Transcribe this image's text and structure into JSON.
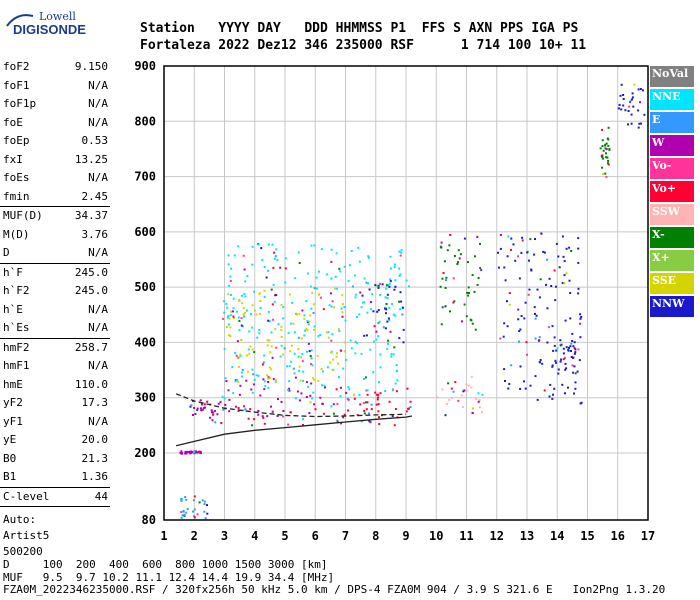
{
  "logo": {
    "line1": "Lowell",
    "line2": "DIGISONDE"
  },
  "header": {
    "line1": "Station   YYYY DAY   DDD HHMMSS P1  FFS S AXN PPS IGA PS",
    "line2": "Fortaleza 2022 Dez12 346 235000 RSF      1 714 100 10+ 11"
  },
  "params": {
    "g1": [
      [
        "foF2",
        "9.150"
      ],
      [
        "foF1",
        "N/A"
      ],
      [
        "foF1p",
        "N/A"
      ],
      [
        "foE",
        "N/A"
      ],
      [
        "foEp",
        "0.53"
      ],
      [
        "fxI",
        "13.25"
      ],
      [
        "foEs",
        "N/A"
      ],
      [
        "fmin",
        "2.45"
      ]
    ],
    "g2": [
      [
        "MUF(D)",
        "34.37"
      ],
      [
        "M(D)",
        "3.76"
      ],
      [
        "D",
        "N/A"
      ]
    ],
    "g3": [
      [
        "h`F",
        "245.0"
      ],
      [
        "h`F2",
        "245.0"
      ],
      [
        "h`E",
        "N/A"
      ],
      [
        "h`Es",
        "N/A"
      ]
    ],
    "g4": [
      [
        "hmF2",
        "258.7"
      ],
      [
        "hmF1",
        "N/A"
      ],
      [
        "hmE",
        "110.0"
      ],
      [
        "yF2",
        "17.3"
      ],
      [
        "yF1",
        "N/A"
      ],
      [
        "yE",
        "20.0"
      ],
      [
        "B0",
        "21.3"
      ],
      [
        "B1",
        "1.36"
      ]
    ],
    "g5": [
      [
        "C-level",
        "44"
      ]
    ]
  },
  "autoscale": {
    "label": "Auto:",
    "name": "Artist5",
    "num": "500200"
  },
  "legend": [
    {
      "name": "NoVal",
      "color": "#808080",
      "text": "#ffffff"
    },
    {
      "name": "NNE",
      "color": "#00e5ff",
      "text": "#ffffff"
    },
    {
      "name": "E",
      "color": "#3399ff",
      "text": "#ffffff"
    },
    {
      "name": "W",
      "color": "#b000b0",
      "text": "#ffffff"
    },
    {
      "name": "Vo-",
      "color": "#ff3399",
      "text": "#ffffff"
    },
    {
      "name": "Vo+",
      "color": "#ff0033",
      "text": "#ffffff"
    },
    {
      "name": "SSW",
      "color": "#ffb3b3",
      "text": "#ffffff"
    },
    {
      "name": "X-",
      "color": "#008000",
      "text": "#ffffff"
    },
    {
      "name": "X+",
      "color": "#88cc44",
      "text": "#ffffff"
    },
    {
      "name": "SSE",
      "color": "#d4d400",
      "text": "#ffffff"
    },
    {
      "name": "NNW",
      "color": "#1a1acc",
      "text": "#ffffff"
    }
  ],
  "footer": {
    "line1": "D     100  200  400  600  800 1000 1500 3000 [km]",
    "line2": "MUF   9.5  9.7 10.2 11.1 12.4 14.4 19.9 34.4 [MHz]",
    "line3": "FZA0M_2022346235000.RSF / 320fx256h 50 kHz 5.0 km / DPS-4 FZA0M 904 / 3.9 S 321.6 E   Ion2Png 1.3.20"
  },
  "chart_data": {
    "type": "scatter",
    "xticks": [
      "1",
      "2",
      "3",
      "4",
      "5",
      "6",
      "7",
      "8",
      "9",
      "10",
      "11",
      "12",
      "13",
      "14",
      "15",
      "16",
      "17"
    ],
    "yticks": [
      "80",
      "200",
      "300",
      "400",
      "500",
      "600",
      "700",
      "800",
      "900"
    ],
    "xlim": [
      1,
      17
    ],
    "ylim": [
      80,
      900
    ],
    "grid": true,
    "legend_position": "right",
    "traces": [
      {
        "name": "o-trace",
        "points": [
          [
            1.4,
            213
          ],
          [
            2,
            221
          ],
          [
            3,
            234
          ],
          [
            4,
            241
          ],
          [
            5,
            246
          ],
          [
            6,
            251
          ],
          [
            7,
            256
          ],
          [
            8,
            261
          ],
          [
            9,
            265
          ],
          [
            9.2,
            267
          ]
        ]
      },
      {
        "name": "x-trace",
        "points": [
          [
            1.4,
            307
          ],
          [
            2,
            294
          ],
          [
            3,
            281
          ],
          [
            4,
            274
          ],
          [
            5,
            268
          ],
          [
            6,
            266
          ],
          [
            7,
            267
          ],
          [
            8,
            269
          ],
          [
            9,
            270
          ]
        ]
      }
    ],
    "echo_regions": [
      {
        "x": [
          1.7,
          3.0
        ],
        "y": [
          265,
          300
        ],
        "dir": "W"
      },
      {
        "x": [
          3.0,
          7.0
        ],
        "y": [
          268,
          340
        ],
        "dir": "W"
      },
      {
        "x": [
          2.0,
          9.2
        ],
        "y": [
          250,
          290
        ],
        "dir": "Vo+"
      },
      {
        "x": [
          7.0,
          9.2
        ],
        "y": [
          270,
          320
        ],
        "dir": "Vo+"
      },
      {
        "x": [
          2.9,
          9.0
        ],
        "y": [
          300,
          580
        ],
        "dir": "NNE"
      },
      {
        "x": [
          3.0,
          7.0
        ],
        "y": [
          330,
          500
        ],
        "dir": "SSE"
      },
      {
        "x": [
          7.5,
          9.2
        ],
        "y": [
          400,
          520
        ],
        "dir": "NNW"
      },
      {
        "x": [
          10.0,
          11.6
        ],
        "y": [
          420,
          600
        ],
        "dir": "X-"
      },
      {
        "x": [
          10.0,
          11.5
        ],
        "y": [
          270,
          340
        ],
        "dir": "SSW"
      },
      {
        "x": [
          12.0,
          14.8
        ],
        "y": [
          290,
          600
        ],
        "dir": "NNW"
      },
      {
        "x": [
          13.8,
          14.6
        ],
        "y": [
          345,
          400
        ],
        "dir": "NNW"
      },
      {
        "x": [
          15.4,
          15.7
        ],
        "y": [
          700,
          790
        ],
        "dir": "X-"
      },
      {
        "x": [
          16.0,
          16.9
        ],
        "y": [
          790,
          870
        ],
        "dir": "NNW"
      },
      {
        "x": [
          1.5,
          2.2
        ],
        "y": [
          200,
          205
        ],
        "dir": "W"
      },
      {
        "x": [
          1.5,
          2.4
        ],
        "y": [
          85,
          125
        ],
        "dir": "E"
      }
    ]
  }
}
